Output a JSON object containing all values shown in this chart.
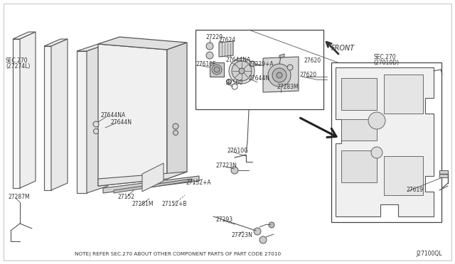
{
  "background_color": "#ffffff",
  "line_color": "#555555",
  "text_color": "#333333",
  "note_text": "NOTE) REFER SEC.270 ABOUT OTHER COMPONENT PARTS OF PART CODE 27010",
  "diagram_code": "J27100QL",
  "sec270_left": "SEC.270\n(27274L)",
  "sec270_right": "SEC.270\n(27010D)",
  "front_label": "FRONT"
}
